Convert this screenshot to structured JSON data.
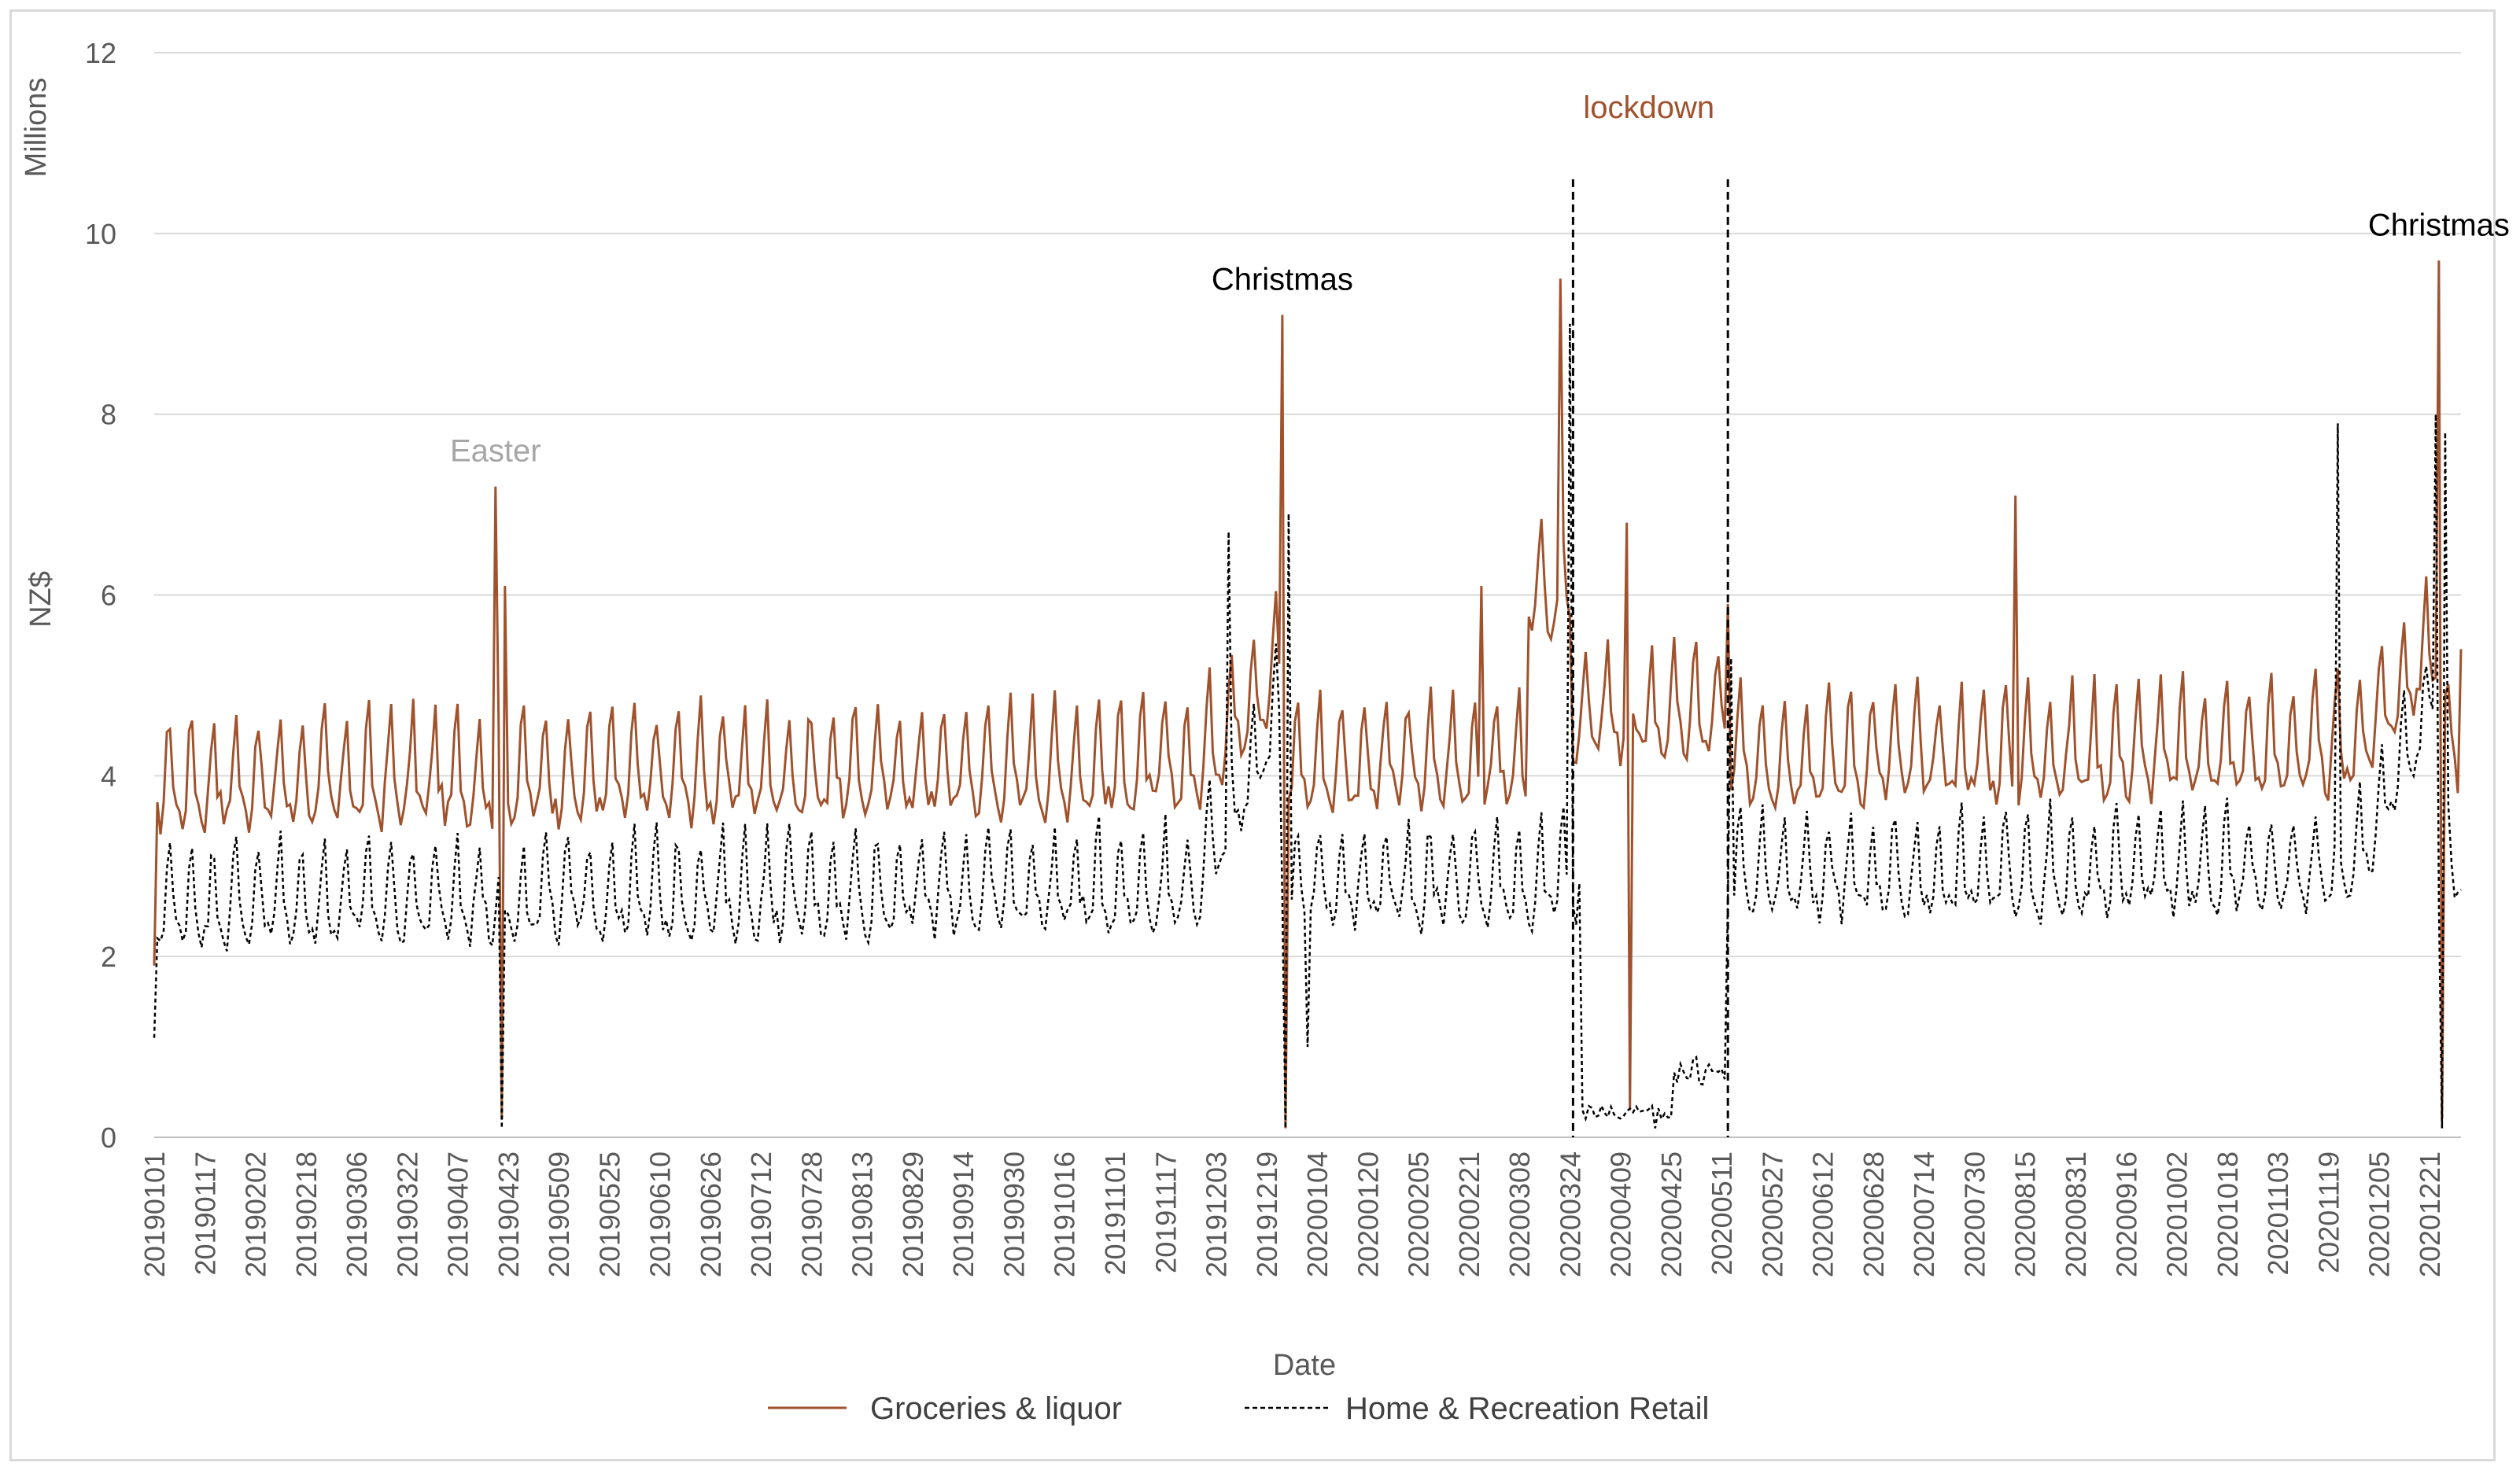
{
  "chart_data": {
    "type": "line",
    "title": "",
    "xlabel": "Date",
    "ylabel": "NZ$",
    "y_unit_label": "Millions",
    "ylim": [
      0,
      12
    ],
    "y_ticks": [
      0,
      2,
      4,
      6,
      8,
      10,
      12
    ],
    "grid": "horizontal",
    "legend_position": "bottom",
    "date_start": "2019-01-01",
    "date_end": "2020-12-31",
    "x_tick_labels": [
      "20190101",
      "20190117",
      "20190202",
      "20190218",
      "20190306",
      "20190322",
      "20190407",
      "20190423",
      "20190509",
      "20190525",
      "20190610",
      "20190626",
      "20190712",
      "20190728",
      "20190813",
      "20190829",
      "20190914",
      "20190930",
      "20191016",
      "20191101",
      "20191117",
      "20191203",
      "20191219",
      "20200104",
      "20200120",
      "20200205",
      "20200221",
      "20200308",
      "20200324",
      "20200409",
      "20200425",
      "20200511",
      "20200527",
      "20200612",
      "20200628",
      "20200714",
      "20200730",
      "20200815",
      "20200831",
      "20200916",
      "20201002",
      "20201018",
      "20201103",
      "20201119",
      "20201205",
      "20201221"
    ],
    "series": [
      {
        "name": "Groceries & liquor",
        "style": "solid",
        "color": "#a0522d",
        "baseline_low": 3.5,
        "baseline_high": 4.7,
        "features": [
          {
            "date": "20190101",
            "value": 1.9
          },
          {
            "date": "20190419",
            "value": 7.2
          },
          {
            "date": "20190421",
            "value": 0.2
          },
          {
            "date": "20190422",
            "value": 6.1
          },
          {
            "date": "20191224",
            "value": 9.1
          },
          {
            "date": "20191225",
            "value": 0.1
          },
          {
            "date": "20200225",
            "value": 6.1
          },
          {
            "date": "20200321",
            "value": 9.5
          },
          {
            "date": "20200411",
            "value": 6.8
          },
          {
            "date": "20200412",
            "value": 0.3
          },
          {
            "date": "20200513",
            "value": 5.9
          },
          {
            "date": "20200812",
            "value": 7.1
          },
          {
            "date": "20201224",
            "value": 9.7
          },
          {
            "date": "20201225",
            "value": 0.2
          },
          {
            "date": "20201231",
            "value": 5.4
          }
        ]
      },
      {
        "name": "Home & Recreation Retail",
        "style": "dashed",
        "color": "#000000",
        "baseline_low": 2.2,
        "baseline_high": 3.3,
        "features": [
          {
            "date": "20190101",
            "value": 1.1
          },
          {
            "date": "20190421",
            "value": 0.1
          },
          {
            "date": "20191207",
            "value": 6.7
          },
          {
            "date": "20191225",
            "value": 0.1
          },
          {
            "date": "20191226",
            "value": 6.9
          },
          {
            "date": "20200101",
            "value": 1.0
          },
          {
            "date": "20200324",
            "value": 9.0
          },
          {
            "date": "20200328",
            "value": 0.3
          },
          {
            "date": "20200420",
            "value": 0.1
          },
          {
            "date": "20200514",
            "value": 5.3
          },
          {
            "date": "20201122",
            "value": 7.9
          },
          {
            "date": "20201223",
            "value": 8.0
          },
          {
            "date": "20201225",
            "value": 0.1
          },
          {
            "date": "20201226",
            "value": 7.8
          }
        ]
      }
    ],
    "lockdown_lines": [
      "20200325",
      "20200513"
    ],
    "annotations": [
      {
        "text": "Easter",
        "date": "20190419",
        "value": 7.6,
        "color": "#a6a6a6"
      },
      {
        "text": "Christmas",
        "date": "20191224",
        "value": 9.5,
        "color": "#000000"
      },
      {
        "text": "lockdown",
        "date": "20200418",
        "value": 11.4,
        "color": "#a0522d"
      },
      {
        "text": "Christmas",
        "date": "20201224",
        "value": 10.1,
        "color": "#000000"
      }
    ]
  }
}
